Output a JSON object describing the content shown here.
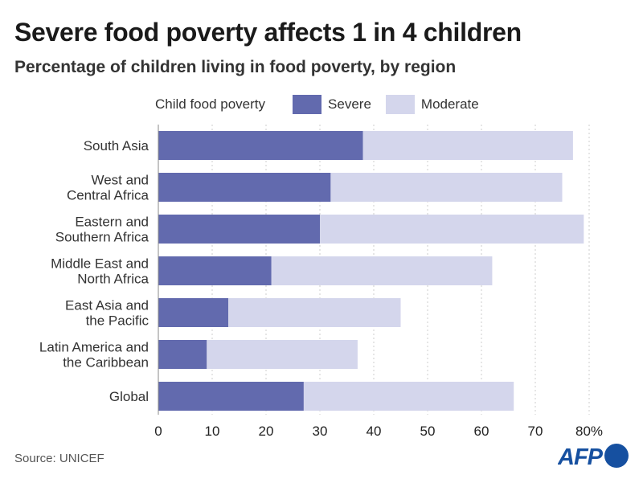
{
  "title": "Severe food poverty affects 1 in 4 children",
  "subtitle": "Percentage of children living in food poverty, by region",
  "source": "Source: UNICEF",
  "logo": "AFP",
  "chart_data": {
    "type": "bar",
    "orientation": "horizontal",
    "stacked": true,
    "legend_title": "Child food poverty",
    "legend_placement": "top",
    "categories": [
      [
        "South Asia"
      ],
      [
        "West and",
        "Central Africa"
      ],
      [
        "Eastern and",
        "Southern Africa"
      ],
      [
        "Middle East and",
        "North Africa"
      ],
      [
        "East Asia and",
        "the Pacific"
      ],
      [
        "Latin America and",
        "the Caribbean"
      ],
      [
        "Global"
      ]
    ],
    "series": [
      {
        "name": "Severe",
        "color": "#626aae",
        "values": [
          38,
          32,
          30,
          21,
          13,
          9,
          27
        ]
      },
      {
        "name": "Moderate",
        "color": "#d4d6ec",
        "values": [
          39,
          43,
          49,
          41,
          32,
          28,
          39
        ]
      }
    ],
    "xlim": [
      0,
      80
    ],
    "xticks": [
      "0",
      "10",
      "20",
      "30",
      "40",
      "50",
      "60",
      "70",
      "80%"
    ],
    "grid": true
  }
}
